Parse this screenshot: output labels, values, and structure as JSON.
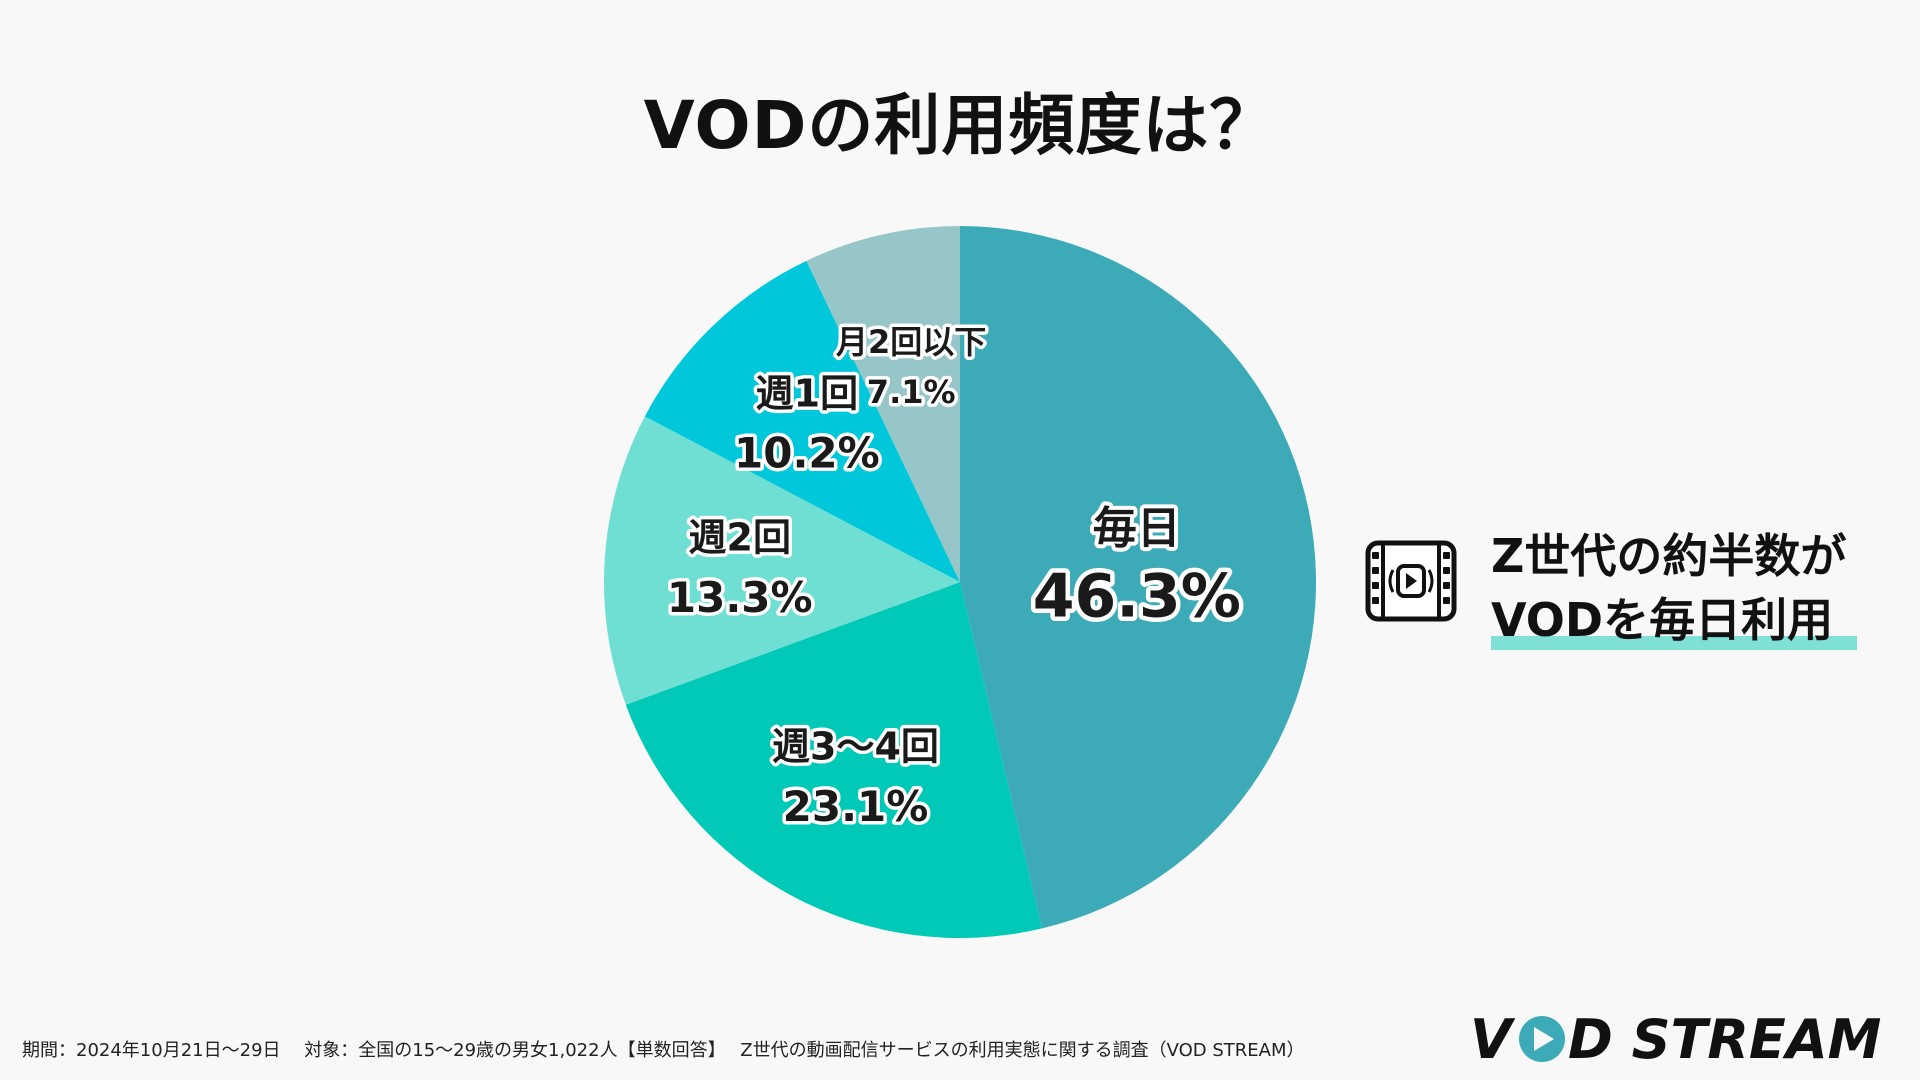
{
  "title": "VODの利用頻度は？",
  "chart_data": {
    "type": "pie",
    "slices": [
      {
        "label": "毎日",
        "value": 46.3,
        "value_label": "46.3%",
        "color": "#3dabb7"
      },
      {
        "label": "週3〜4回",
        "value": 23.1,
        "value_label": "23.1%",
        "color": "#00c9b7"
      },
      {
        "label": "週2回",
        "value": 13.3,
        "value_label": "13.3%",
        "color": "#6fdfd3"
      },
      {
        "label": "週1回",
        "value": 10.2,
        "value_label": "10.2%",
        "color": "#00c8da"
      },
      {
        "label": "月2回以下",
        "value": 7.1,
        "value_label": "7.1%",
        "color": "#97c6c8"
      }
    ],
    "start_angle": "12 o'clock",
    "direction": "clockwise"
  },
  "callout": {
    "icon": "film-play-icon",
    "line1": "Z世代の約半数が",
    "line2": "VODを毎日利用",
    "highlight_color": "#7fe0d6"
  },
  "footnote": "期間：2024年10月21日〜29日　 対象：全国の15〜29歳の男女1,022人【単数回答】　 Z世代の動画配信サービスの利用実態に関する調査（VOD STREAM）",
  "logo": {
    "prefix": "V",
    "suffix": "D STREAM",
    "accent_color": "#3dabb7"
  }
}
